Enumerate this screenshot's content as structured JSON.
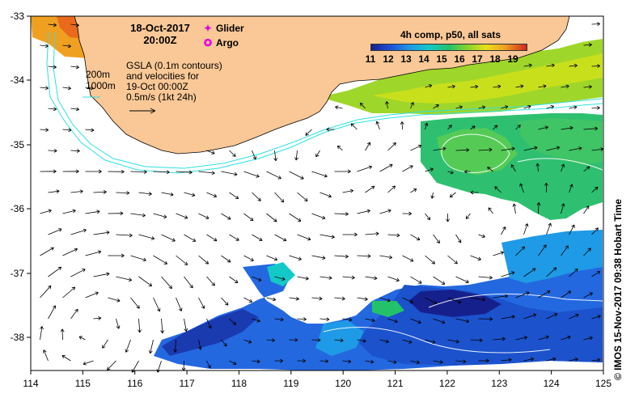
{
  "map": {
    "lon_ticks": [
      "114",
      "115",
      "116",
      "117",
      "118",
      "119",
      "120",
      "121",
      "122",
      "123",
      "124",
      "125"
    ],
    "lat_ticks": [
      "-33",
      "-34",
      "-35",
      "-36",
      "-37",
      "-38"
    ],
    "land_color": "#f9c896",
    "ocean_color": "#ffffff",
    "isobath_color": "#30e0e0"
  },
  "annotation": {
    "date_line1": "18-Oct-2017",
    "date_line2": "20:00Z",
    "depth_200": "200m",
    "depth_1000": "1000m",
    "gsla_line1": "GSLA (0.1m contours)",
    "gsla_line2": "and velocities for",
    "gsla_line3": "19-Oct 00:00Z",
    "gsla_line4": "0.5m/s (1kt 24h)"
  },
  "legend": {
    "glider_label": "Glider",
    "argo_label": "Argo",
    "glider_color": "#e000e0",
    "argo_color": "#e000e0"
  },
  "colorbar": {
    "title": "4h comp, p50, all sats",
    "ticks": [
      "11",
      "12",
      "13",
      "14",
      "15",
      "16",
      "17",
      "18",
      "19"
    ]
  },
  "footer": {
    "text": "© IMOS 15-Nov-2017 09:38 Hobart Time"
  }
}
